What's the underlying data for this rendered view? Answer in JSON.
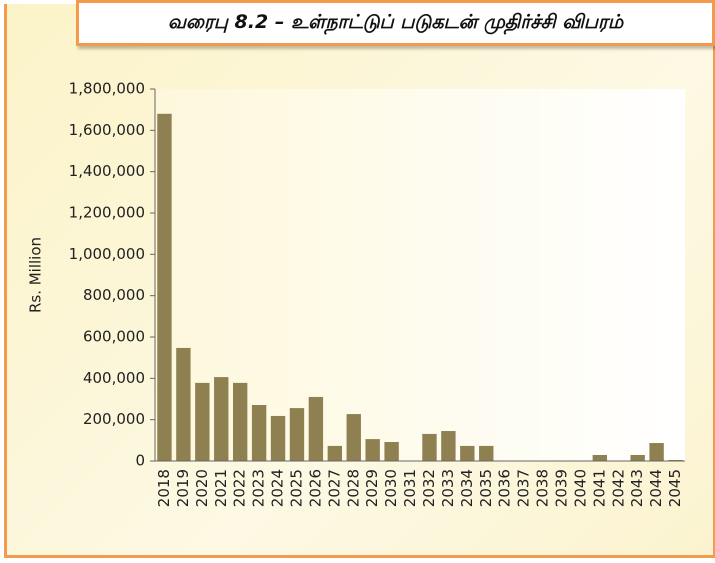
{
  "chart_data": {
    "type": "bar",
    "title": "வரைபு 8.2 – உள்நாட்டுப் படுகடன் முதிர்ச்சி விபரம்",
    "y_label": "Rs. Million",
    "categories": [
      "2018",
      "2019",
      "2020",
      "2021",
      "2022",
      "2023",
      "2024",
      "2025",
      "2026",
      "2027",
      "2028",
      "2029",
      "2030",
      "2031",
      "2032",
      "2033",
      "2034",
      "2035",
      "2036",
      "2037",
      "2038",
      "2039",
      "2040",
      "2041",
      "2042",
      "2043",
      "2044",
      "2045"
    ],
    "values": [
      1680000,
      547000,
      378000,
      406000,
      378000,
      271000,
      218000,
      256000,
      310000,
      73000,
      227000,
      106000,
      92000,
      0,
      131000,
      145000,
      73000,
      73000,
      0,
      0,
      0,
      0,
      0,
      29000,
      0,
      29000,
      87000,
      5000
    ],
    "color": "#8f8052",
    "ylim": [
      0,
      1800000
    ],
    "yticks": [
      0,
      {
        "value": 200000,
        "label": "200,000"
      },
      {
        "value": 400000,
        "label": "400,000"
      },
      {
        "value": 600000,
        "label": "600,000"
      },
      {
        "value": 800000,
        "label": "800,000"
      },
      {
        "value": 1000000,
        "label": "1,000,000"
      },
      {
        "value": 1200000,
        "label": "1,200,000"
      },
      {
        "value": 1400000,
        "label": "1,400,000"
      },
      {
        "value": 1600000,
        "label": "1,600,000"
      },
      {
        "value": 1800000,
        "label": "1,800,000"
      }
    ],
    "grid": false
  }
}
